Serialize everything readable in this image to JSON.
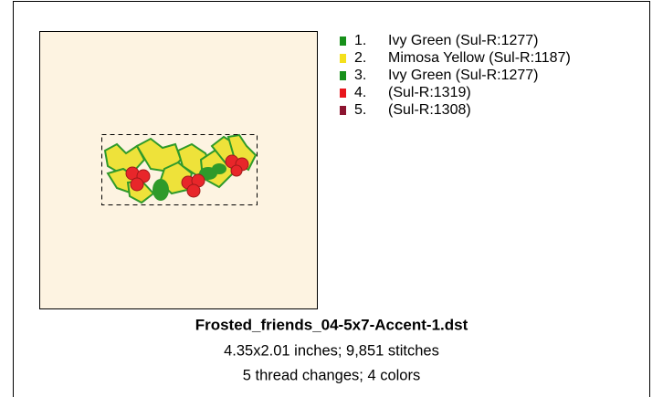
{
  "threads": [
    {
      "number": "1.",
      "name": "Ivy Green (Sul-R:1277)",
      "color": "#17901a"
    },
    {
      "number": "2.",
      "name": "Mimosa Yellow (Sul-R:1187)",
      "color": "#f4e01c"
    },
    {
      "number": "3.",
      "name": "Ivy Green (Sul-R:1277)",
      "color": "#17901a"
    },
    {
      "number": "4.",
      "name": "(Sul-R:1319)",
      "color": "#e8161c"
    },
    {
      "number": "5.",
      "name": "(Sul-R:1308)",
      "color": "#8c1430"
    }
  ],
  "file_name": "Frosted_friends_04-5x7-Accent-1.dst",
  "size_line": "4.35x2.01 inches; 9,851 stitches",
  "changes_line": "5 thread changes; 4 colors"
}
